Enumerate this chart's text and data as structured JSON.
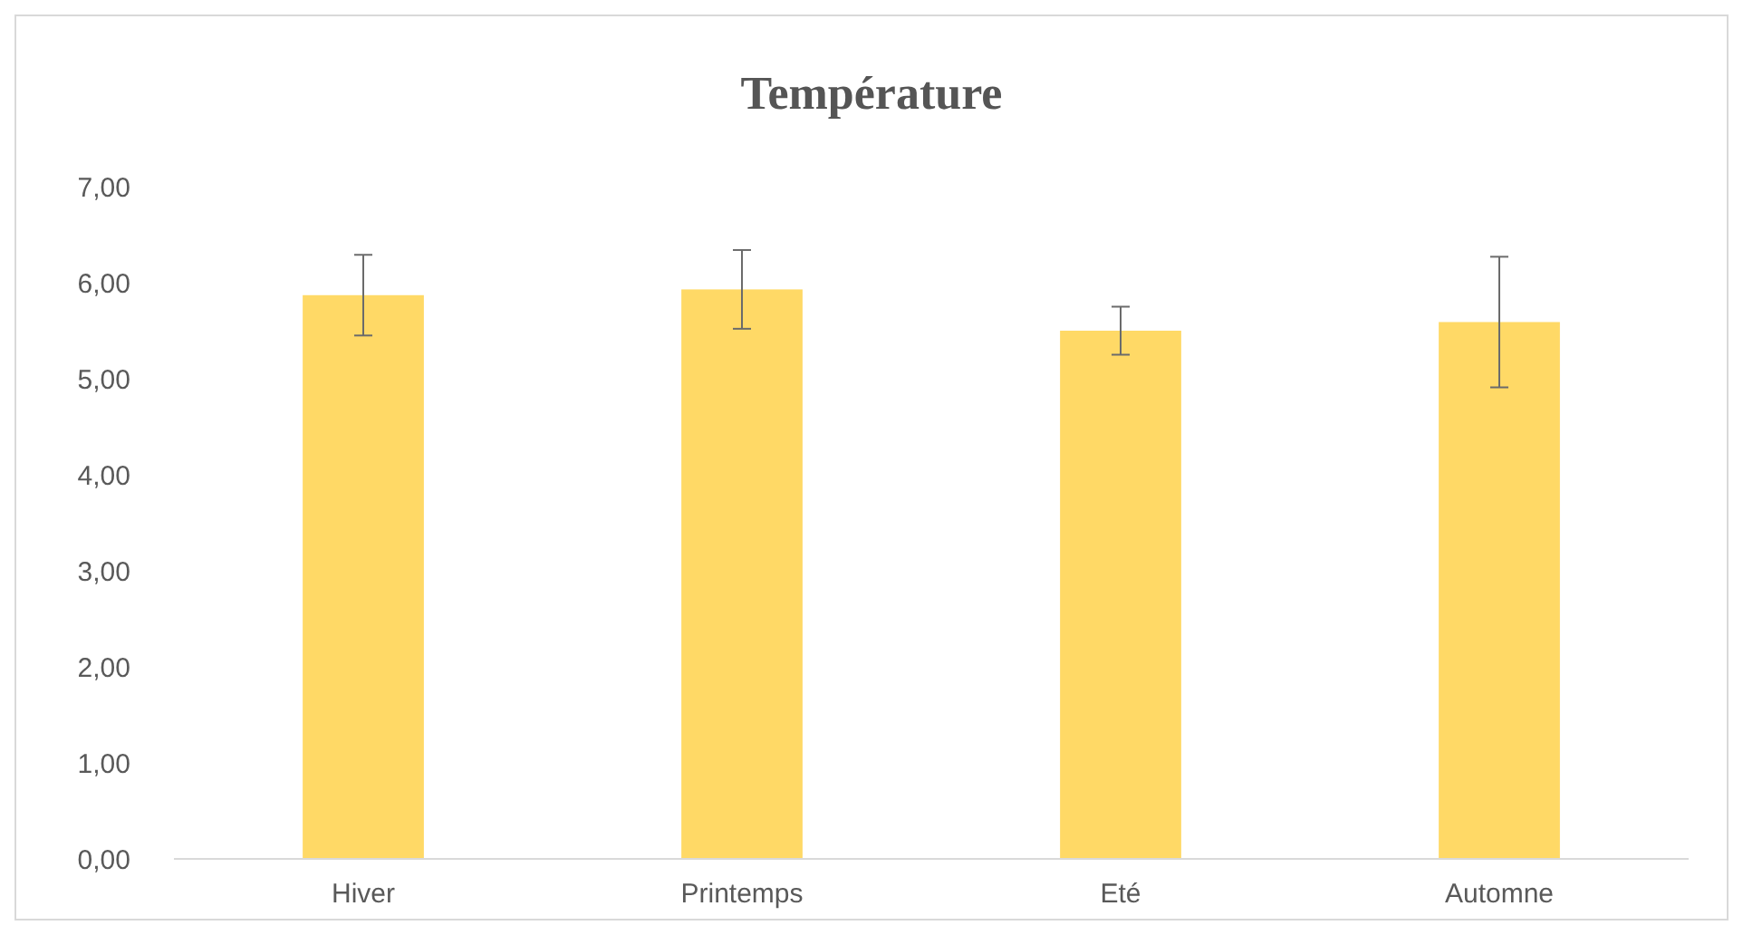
{
  "chart_data": {
    "type": "bar",
    "title": "Température",
    "categories": [
      "Hiver",
      "Printemps",
      "Eté",
      "Automne"
    ],
    "values": [
      5.87,
      5.93,
      5.5,
      5.59
    ],
    "errors": [
      0.42,
      0.41,
      0.25,
      0.68
    ],
    "color": "#ffd966",
    "ylim": [
      0,
      7
    ],
    "yticks": [
      {
        "value": 0,
        "label": "0,00"
      },
      {
        "value": 1,
        "label": "1,00"
      },
      {
        "value": 2,
        "label": "2,00"
      },
      {
        "value": 3,
        "label": "3,00"
      },
      {
        "value": 4,
        "label": "4,00"
      },
      {
        "value": 5,
        "label": "5,00"
      },
      {
        "value": 6,
        "label": "6,00"
      },
      {
        "value": 7,
        "label": "7,00"
      }
    ],
    "grid": false
  }
}
